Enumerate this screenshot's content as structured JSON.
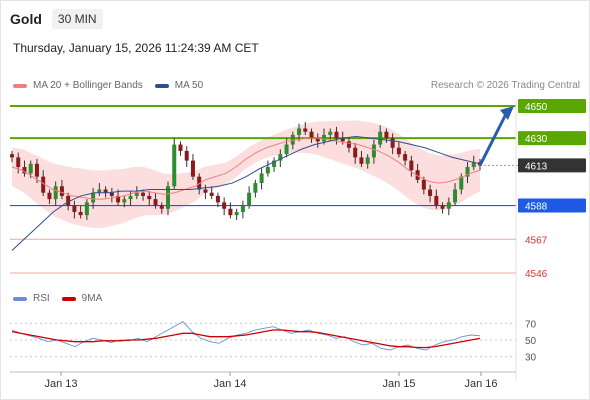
{
  "header": {
    "title": "Gold",
    "timeframe": "30 MIN"
  },
  "datetime": "Thursday, January 15, 2026 11:24:39 AM CET",
  "legend": {
    "ma20": {
      "label": "MA 20 + Bollinger Bands",
      "color": "#f08080"
    },
    "ma50": {
      "label": "MA 50",
      "color": "#2f4f8f"
    }
  },
  "credit": "Research © 2026 Trading Central",
  "colors": {
    "resistance": "#5aa700",
    "support": "#1e5ae6",
    "lower_support": "#d33",
    "current": "#333333",
    "up_candle": "#2e8b2e",
    "down_candle": "#8b1a1a",
    "band_fill": "#fbd6d6"
  },
  "chart_data": [
    {
      "type": "line",
      "title": "",
      "price_levels": [
        {
          "value": 4650,
          "label": "4650",
          "kind": "resistance"
        },
        {
          "value": 4630,
          "label": "4630",
          "kind": "resistance"
        },
        {
          "value": 4613,
          "label": "4613",
          "kind": "current"
        },
        {
          "value": 4588,
          "label": "4588",
          "kind": "support"
        },
        {
          "value": 4567,
          "label": "4567",
          "kind": "lower_support"
        },
        {
          "value": 4546,
          "label": "4546",
          "kind": "lower_support"
        }
      ],
      "x_ticks": [
        "Jan 13",
        "Jan 14",
        "Jan 15",
        "Jan 16"
      ],
      "projection": {
        "from": 4613,
        "to": 4650
      },
      "series": [
        {
          "name": "Gold",
          "values": [
            4618,
            4612,
            4608,
            4614,
            4606,
            4596,
            4592,
            4600,
            4594,
            4588,
            4584,
            4582,
            4590,
            4596,
            4598,
            4596,
            4594,
            4590,
            4592,
            4594,
            4596,
            4594,
            4592,
            4588,
            4586,
            4600,
            4626,
            4622,
            4616,
            4606,
            4598,
            4596,
            4594,
            4590,
            4586,
            4582,
            4584,
            4588,
            4596,
            4602,
            4608,
            4612,
            4616,
            4620,
            4626,
            4632,
            4636,
            4634,
            4630,
            4628,
            4632,
            4634,
            4630,
            4628,
            4624,
            4618,
            4614,
            4618,
            4626,
            4634,
            4630,
            4624,
            4620,
            4616,
            4610,
            4604,
            4598,
            4594,
            4588,
            4586,
            4590,
            4598,
            4606,
            4612,
            4615,
            4613
          ]
        },
        {
          "name": "MA 20",
          "values": [
            4612,
            4610,
            4606,
            4602,
            4598,
            4596,
            4594,
            4593,
            4592,
            4592,
            4593,
            4594,
            4596,
            4597,
            4596,
            4595,
            4596,
            4598,
            4600,
            4604,
            4606,
            4608,
            4612,
            4617,
            4621,
            4624,
            4626,
            4628,
            4629,
            4630,
            4630,
            4629,
            4628,
            4627,
            4626,
            4624,
            4622,
            4619,
            4615,
            4610,
            4606,
            4603,
            4602,
            4603,
            4605,
            4608,
            4610
          ]
        },
        {
          "name": "MA 50",
          "values": [
            4560,
            4568,
            4576,
            4584,
            4590,
            4594,
            4596,
            4596,
            4597,
            4597,
            4598,
            4598,
            4598,
            4598,
            4599,
            4600,
            4602,
            4606,
            4611,
            4615,
            4619,
            4623,
            4626,
            4628,
            4630,
            4631,
            4630,
            4629,
            4628,
            4626,
            4624,
            4621,
            4618,
            4616,
            4614
          ]
        }
      ]
    },
    {
      "type": "line",
      "title": "",
      "ylim": [
        20,
        80
      ],
      "y_ticks": [
        70,
        50,
        30
      ],
      "series": [
        {
          "name": "RSI",
          "color": "#6b8fd6",
          "values": [
            62,
            58,
            55,
            52,
            48,
            50,
            46,
            42,
            48,
            52,
            50,
            47,
            50,
            49,
            52,
            48,
            54,
            60,
            66,
            72,
            60,
            52,
            48,
            46,
            52,
            56,
            58,
            62,
            64,
            66,
            62,
            58,
            60,
            62,
            58,
            56,
            52,
            54,
            48,
            44,
            46,
            40,
            38,
            42,
            44,
            40,
            38,
            44,
            48,
            50,
            54,
            56,
            55
          ]
        },
        {
          "name": "9MA",
          "color": "#cc0000",
          "values": [
            60,
            58,
            56,
            54,
            52,
            50,
            49,
            48,
            48,
            48,
            49,
            49,
            49,
            50,
            50,
            51,
            52,
            54,
            56,
            58,
            58,
            56,
            54,
            54,
            54,
            55,
            56,
            58,
            60,
            62,
            62,
            61,
            60,
            60,
            59,
            57,
            55,
            53,
            51,
            49,
            47,
            45,
            43,
            42,
            42,
            41,
            41,
            42,
            44,
            46,
            48,
            50,
            52
          ]
        }
      ]
    }
  ]
}
